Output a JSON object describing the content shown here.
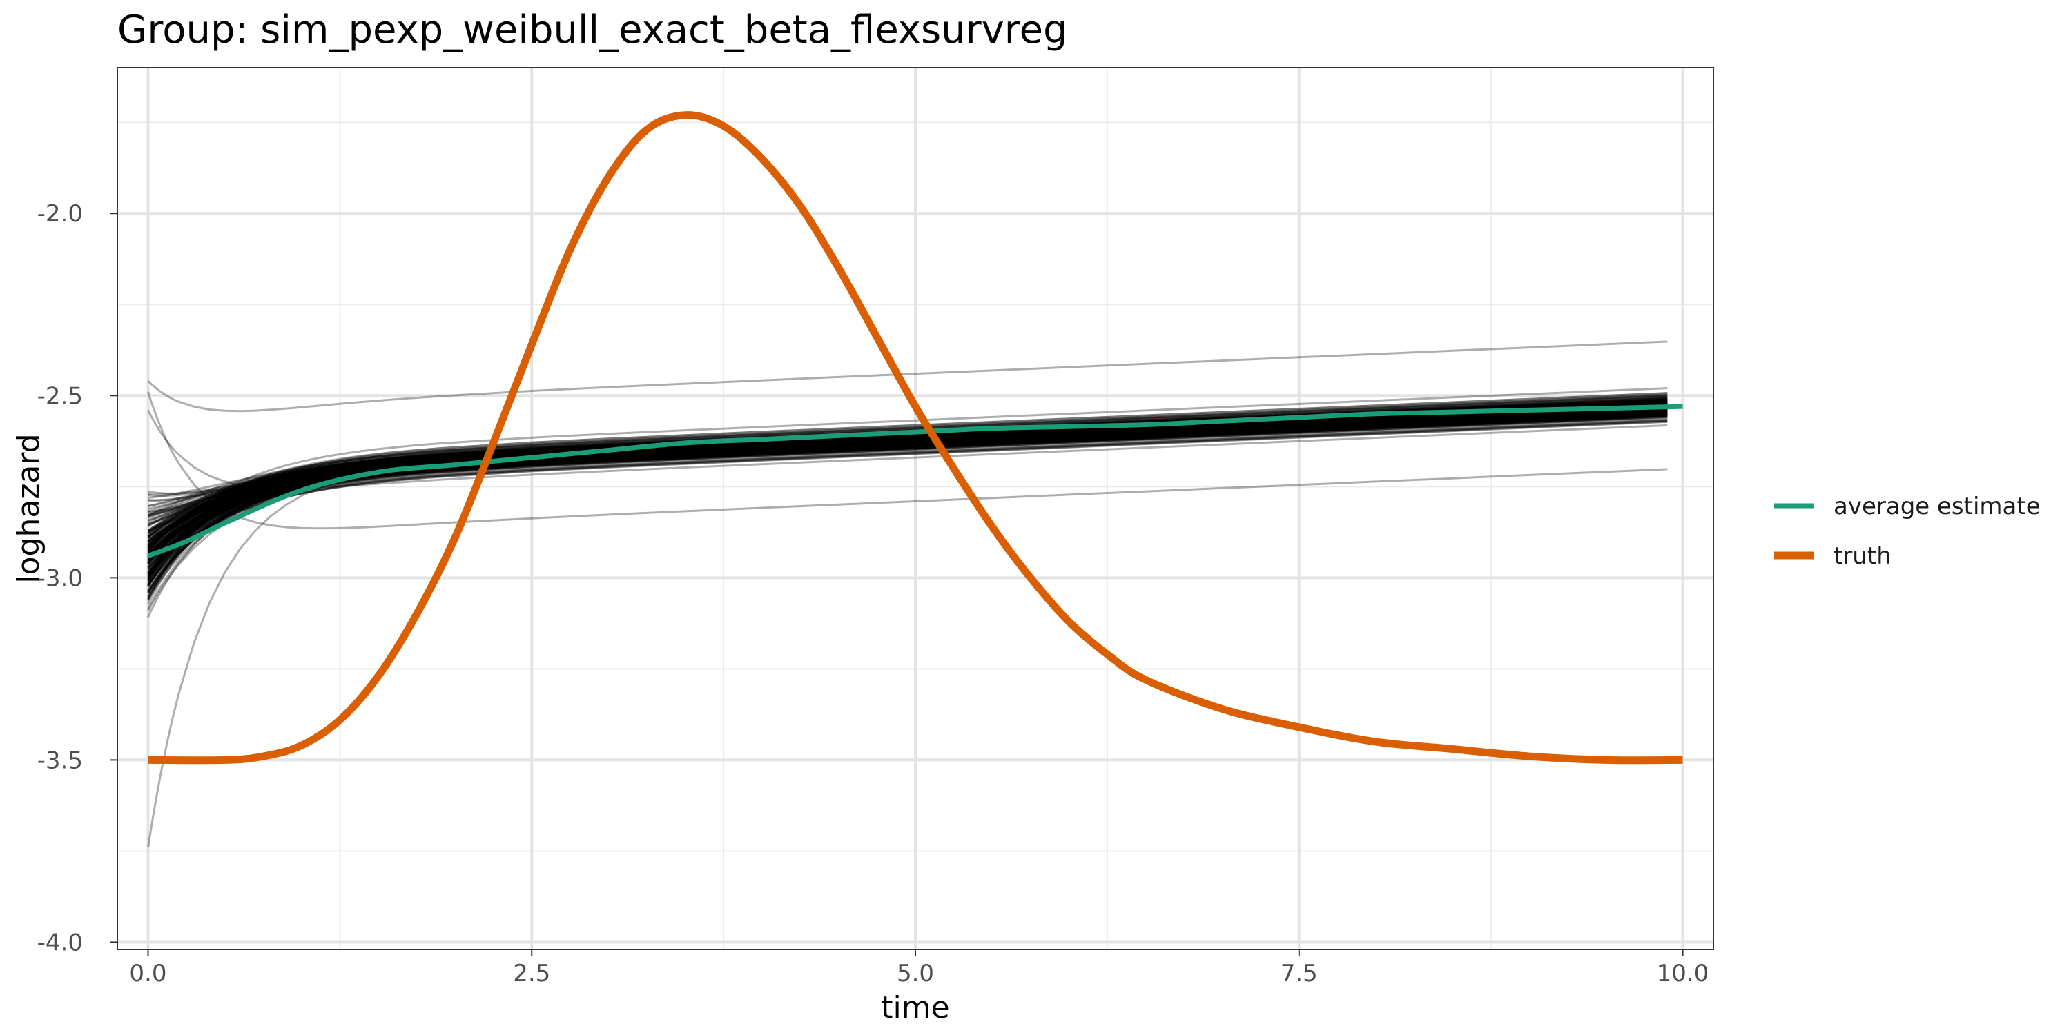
{
  "chart_data": {
    "type": "line",
    "title": "Group: sim_pexp_weibull_exact_beta_flexsurvreg",
    "xlabel": "time",
    "ylabel": "loghazard",
    "xlim": [
      -0.2,
      10.2
    ],
    "ylim": [
      -4.02,
      -1.6
    ],
    "x_ticks": [
      0.0,
      2.5,
      5.0,
      7.5,
      10.0
    ],
    "x_tick_labels": [
      "0.0",
      "2.5",
      "5.0",
      "7.5",
      "10.0"
    ],
    "y_ticks": [
      -4.0,
      -3.5,
      -3.0,
      -2.5,
      -2.0
    ],
    "y_tick_labels": [
      "-4.0",
      "-3.5",
      "-3.0",
      "-2.5",
      "-2.0"
    ],
    "grid": true,
    "legend_position": "right",
    "series": [
      {
        "name": "average estimate",
        "color": "#1b9e77",
        "x": [
          0.0,
          0.25,
          0.5,
          1.0,
          1.5,
          2.0,
          2.5,
          3.0,
          3.5,
          4.0,
          4.5,
          5.0,
          5.5,
          6.0,
          6.5,
          7.0,
          7.5,
          8.0,
          8.5,
          9.0,
          9.5,
          10.0
        ],
        "y": [
          -2.94,
          -2.9,
          -2.85,
          -2.76,
          -2.71,
          -2.69,
          -2.67,
          -2.65,
          -2.63,
          -2.62,
          -2.61,
          -2.6,
          -2.59,
          -2.585,
          -2.58,
          -2.57,
          -2.56,
          -2.55,
          -2.545,
          -2.54,
          -2.535,
          -2.53
        ]
      },
      {
        "name": "truth",
        "color": "#d95f02",
        "x": [
          0.0,
          0.5,
          0.75,
          1.0,
          1.25,
          1.5,
          1.75,
          2.0,
          2.25,
          2.5,
          2.75,
          3.0,
          3.25,
          3.5,
          3.75,
          4.0,
          4.25,
          4.5,
          4.75,
          5.0,
          5.25,
          5.5,
          5.75,
          6.0,
          6.25,
          6.5,
          7.0,
          7.5,
          8.0,
          8.5,
          9.0,
          9.5,
          10.0
        ],
        "y": [
          -3.5,
          -3.5,
          -3.49,
          -3.46,
          -3.39,
          -3.27,
          -3.1,
          -2.89,
          -2.63,
          -2.36,
          -2.1,
          -1.9,
          -1.77,
          -1.73,
          -1.76,
          -1.85,
          -1.98,
          -2.15,
          -2.34,
          -2.53,
          -2.7,
          -2.86,
          -3.0,
          -3.12,
          -3.21,
          -3.28,
          -3.36,
          -3.41,
          -3.45,
          -3.47,
          -3.49,
          -3.5,
          -3.5
        ]
      }
    ],
    "simulation_lines": {
      "count": 200,
      "color": "#000000",
      "opacity": 0.32,
      "x_end": 9.9,
      "start_range": [
        -3.9,
        -2.3
      ],
      "end_range": [
        -2.87,
        -2.28
      ]
    }
  }
}
